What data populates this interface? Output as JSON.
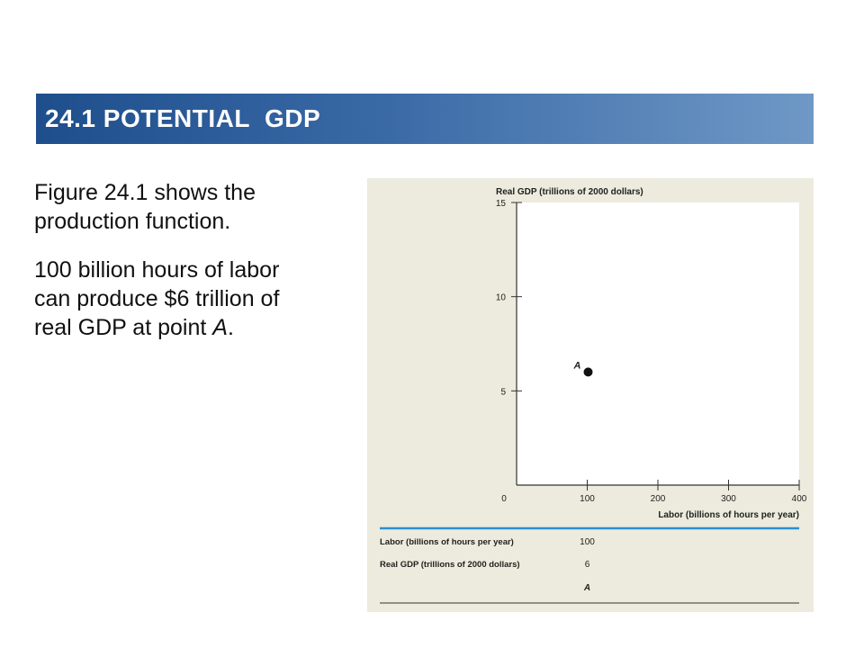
{
  "slide": {
    "title": "24.1 POTENTIAL  GDP",
    "paragraph1": "Figure 24.1 shows the production function.",
    "paragraph2_part1": "100 billion hours of labor can produce $6 trillion of real GDP at point ",
    "paragraph2_point": "A",
    "paragraph2_end": "."
  },
  "colors": {
    "title_bar_start": "#1e4e8c",
    "title_bar_end": "#6f98c6",
    "figure_background": "#ecebdd",
    "plot_background": "#ffffff",
    "table_rule": "#2a8fd0"
  },
  "chart_data": {
    "type": "scatter",
    "xlabel": "Labor (billions of hours per year)",
    "ylabel": "Real GDP (trillions of 2000 dollars)",
    "xlim": [
      0,
      400
    ],
    "ylim": [
      0,
      15
    ],
    "x_ticks": [
      0,
      100,
      200,
      300,
      400
    ],
    "y_ticks": [
      5,
      10,
      15
    ],
    "grid": false,
    "points": [
      {
        "x": 100,
        "y": 6,
        "label": "A"
      }
    ],
    "table": {
      "rows": [
        {
          "label": "Labor (billions of hours per year)",
          "values": [
            "100"
          ]
        },
        {
          "label": "Real GDP (trillions of 2000 dollars)",
          "values": [
            "6"
          ]
        },
        {
          "label": "",
          "values": [
            "A"
          ]
        }
      ]
    }
  }
}
